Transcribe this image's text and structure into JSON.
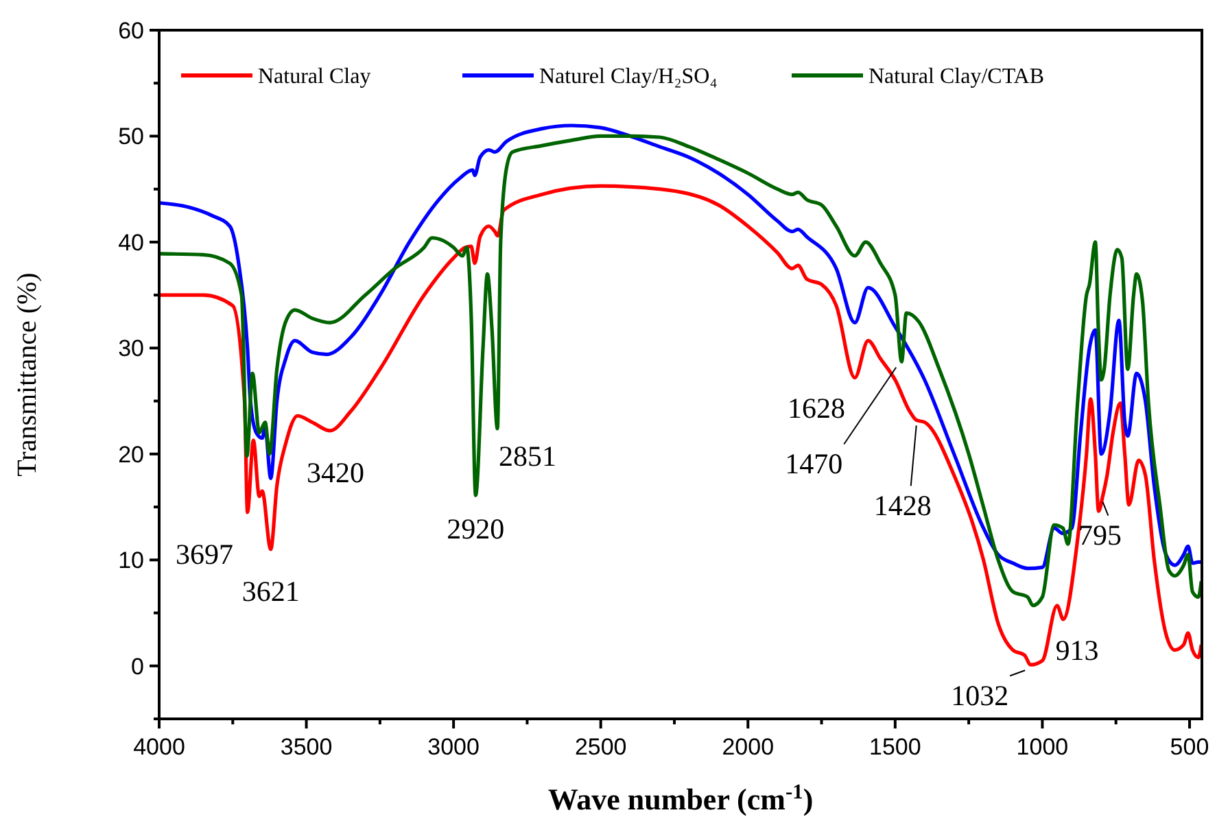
{
  "chart_data": {
    "type": "line",
    "xlabel": "Wave number (cm$^{-1}$)",
    "ylabel": "Transmittance (%)",
    "xlim": [
      4000,
      458
    ],
    "ylim": [
      -5,
      60
    ],
    "xticks": [
      4000,
      {
        "value": 3750,
        "label": null
      },
      3500,
      {
        "value": 3250,
        "label": null
      },
      3000,
      {
        "value": 2750,
        "label": null
      },
      2500,
      {
        "value": 2250,
        "label": null
      },
      2000,
      {
        "value": 1750,
        "label": null
      },
      1500,
      {
        "value": 1250,
        "label": null
      },
      1000,
      {
        "value": 750,
        "label": null
      },
      500
    ],
    "yticks": [
      {
        "value": -5,
        "label": null
      },
      0,
      {
        "value": 5,
        "label": null
      },
      10,
      {
        "value": 15,
        "label": null
      },
      20,
      {
        "value": 25,
        "label": null
      },
      30,
      {
        "value": 35,
        "label": null
      },
      40,
      {
        "value": 45,
        "label": null
      },
      50,
      {
        "value": 55,
        "label": null
      },
      60
    ],
    "grid": false,
    "legend": "top",
    "marker": "none",
    "line_style": "solid",
    "series": [
      {
        "name": "Natural Clay",
        "color": "#ff0000",
        "x": [
          4000,
          3850,
          3750,
          3710,
          3700,
          3680,
          3660,
          3650,
          3621,
          3600,
          3570,
          3530,
          3480,
          3420,
          3350,
          3250,
          3100,
          3000,
          2960,
          2940,
          2928,
          2910,
          2880,
          2860,
          2850,
          2830,
          2700,
          2500,
          2300,
          2100,
          2000,
          1900,
          1850,
          1830,
          1800,
          1750,
          1700,
          1637,
          1592,
          1550,
          1500,
          1450,
          1428,
          1400,
          1300,
          1200,
          1150,
          1100,
          1060,
          1040,
          1000,
          950,
          929,
          880,
          850,
          836,
          820,
          809,
          795,
          780,
          760,
          735,
          720,
          706,
          673,
          650,
          620,
          580,
          550,
          520,
          505,
          490,
          470,
          460
        ],
        "values": [
          35,
          35,
          34,
          25,
          14.5,
          21.3,
          16,
          16.5,
          11,
          17,
          21,
          23.6,
          23,
          22.2,
          24,
          28,
          35,
          38.5,
          39.5,
          39.6,
          38,
          40.5,
          41.5,
          41,
          40.6,
          43,
          44.5,
          45.3,
          45,
          43.5,
          41.5,
          39,
          37.5,
          37.8,
          36.5,
          36,
          34,
          27.2,
          30.7,
          29,
          27,
          24,
          23.2,
          23,
          18,
          10,
          4,
          1.5,
          1,
          0.1,
          0.5,
          5.7,
          4.4,
          12,
          20,
          25.2,
          20,
          14.6,
          16,
          18,
          22,
          24.8,
          20,
          15.2,
          19.4,
          18,
          10,
          3,
          1.5,
          2,
          3.1,
          1.5,
          0.8,
          2
        ]
      },
      {
        "name": "Naturel Clay/H₂SO₄",
        "color": "#0000ff",
        "x": [
          4000,
          3900,
          3820,
          3760,
          3730,
          3700,
          3690,
          3670,
          3650,
          3640,
          3621,
          3600,
          3570,
          3539,
          3480,
          3431,
          3350,
          3250,
          3150,
          3050,
          2980,
          2935,
          2928,
          2910,
          2880,
          2860,
          2820,
          2700,
          2600,
          2500,
          2400,
          2300,
          2200,
          2100,
          2000,
          1900,
          1850,
          1830,
          1800,
          1700,
          1637,
          1592,
          1500,
          1400,
          1300,
          1200,
          1150,
          1100,
          1050,
          1000,
          960,
          930,
          900,
          870,
          840,
          820,
          800,
          770,
          740,
          720,
          710,
          680,
          650,
          620,
          580,
          550,
          520,
          505,
          490,
          470,
          460
        ],
        "values": [
          43.7,
          43.3,
          42.5,
          41.5,
          38,
          30,
          25,
          22,
          21.5,
          22.5,
          17.7,
          25,
          29,
          30.7,
          29.6,
          29.4,
          31,
          35,
          40,
          44,
          46,
          46.8,
          46.3,
          48,
          48.7,
          48.5,
          49.5,
          50.7,
          51,
          50.8,
          50,
          49,
          48,
          46.5,
          44.5,
          42,
          41,
          41.2,
          40.5,
          37.5,
          32.4,
          35.7,
          32,
          27,
          20,
          13,
          10.5,
          9.7,
          9.2,
          9.3,
          13,
          12.5,
          13,
          22,
          30,
          31.7,
          20,
          24,
          32.6,
          23,
          21.7,
          27.6,
          25,
          17,
          10.5,
          9.5,
          10.5,
          11.3,
          9.7,
          9.8,
          9.8
        ]
      },
      {
        "name": "Natural Clay/CTAB",
        "color": "#006400",
        "x": [
          4000,
          3850,
          3760,
          3720,
          3702,
          3683,
          3660,
          3650,
          3640,
          3625,
          3600,
          3570,
          3539,
          3480,
          3420,
          3300,
          3200,
          3100,
          3073,
          3000,
          2970,
          2955,
          2940,
          2925,
          2900,
          2885,
          2870,
          2851,
          2840,
          2820,
          2800,
          2700,
          2600,
          2500,
          2400,
          2300,
          2200,
          2100,
          2000,
          1900,
          1850,
          1830,
          1800,
          1750,
          1700,
          1637,
          1600,
          1550,
          1500,
          1478,
          1462,
          1420,
          1350,
          1250,
          1200,
          1150,
          1100,
          1050,
          1032,
          1000,
          960,
          930,
          913,
          880,
          850,
          840,
          820,
          810,
          800,
          790,
          770,
          745,
          730,
          710,
          690,
          680,
          660,
          640,
          600,
          570,
          550,
          520,
          505,
          490,
          470,
          460
        ],
        "values": [
          38.9,
          38.8,
          38,
          35,
          19.8,
          27.6,
          22,
          22.5,
          23,
          20,
          28,
          32.5,
          33.6,
          32.8,
          32.4,
          35,
          37.5,
          39.5,
          40.4,
          39.5,
          38.7,
          39.5,
          33,
          16.1,
          30,
          37,
          32,
          22.4,
          40,
          47,
          48.5,
          49.1,
          49.6,
          50,
          50,
          49.9,
          49,
          47.8,
          46.5,
          45,
          44.5,
          44.7,
          44,
          43.5,
          41.5,
          38.7,
          40,
          38,
          35,
          28.7,
          33.3,
          32.5,
          28,
          20,
          15,
          10,
          7,
          6.5,
          5.7,
          6.5,
          13.3,
          13,
          11.5,
          25,
          35,
          36,
          40,
          32,
          27,
          28,
          35,
          39.3,
          38.5,
          28,
          35,
          37,
          34.5,
          25,
          15,
          9,
          8.5,
          9.5,
          10.5,
          7,
          6.5,
          8
        ]
      }
    ],
    "annotations": [
      {
        "text": "3697",
        "x": 3697,
        "y": 14.5
      },
      {
        "text": "3621",
        "x": 3621,
        "y": 11
      },
      {
        "text": "3420",
        "x": 3420,
        "y": 22.2
      },
      {
        "text": "2920",
        "x": 2925,
        "y": 16.1
      },
      {
        "text": "2851",
        "x": 2851,
        "y": 22.4
      },
      {
        "text": "1628",
        "x": 1637,
        "y": 27.2
      },
      {
        "text": "1470",
        "x": 1478,
        "y": 28.7
      },
      {
        "text": "1428",
        "x": 1428,
        "y": 23.2
      },
      {
        "text": "1032",
        "x": 1040,
        "y": 0.1
      },
      {
        "text": "913",
        "x": 929,
        "y": 4.4
      },
      {
        "text": "795",
        "x": 795,
        "y": 16
      }
    ]
  }
}
